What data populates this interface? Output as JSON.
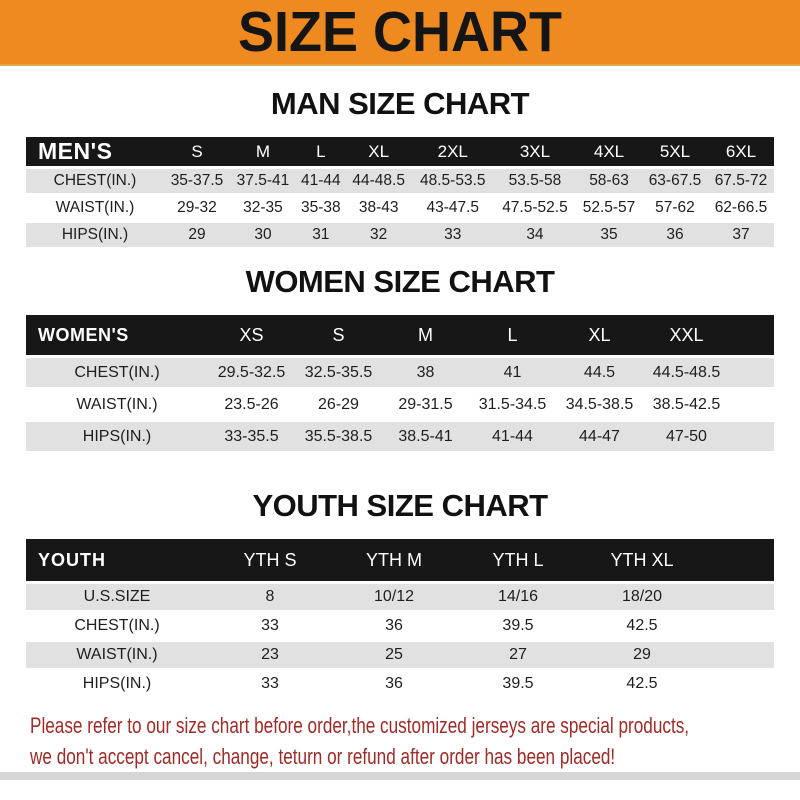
{
  "banner": {
    "title": "SIZE CHART"
  },
  "colors": {
    "orange": "#ee8a20",
    "orange-edge": "#d9a850",
    "bar": "#171717",
    "shade": "#e1e1e1",
    "red": "#9d2b27"
  },
  "sections": [
    {
      "heading": "MAN SIZE CHART",
      "corner_label": "MEN'S",
      "columns": [
        "S",
        "M",
        "L",
        "XL",
        "2XL",
        "3XL",
        "4XL",
        "5XL",
        "6XL"
      ],
      "rows": [
        {
          "label": "CHEST(IN.)",
          "values": [
            "35-37.5",
            "37.5-41",
            "41-44",
            "44-48.5",
            "48.5-53.5",
            "53.5-58",
            "58-63",
            "63-67.5",
            "67.5-72"
          ]
        },
        {
          "label": "WAIST(IN.)",
          "values": [
            "29-32",
            "32-35",
            "35-38",
            "38-43",
            "43-47.5",
            "47.5-52.5",
            "52.5-57",
            "57-62",
            "62-66.5"
          ]
        },
        {
          "label": "HIPS(IN.)",
          "values": [
            "29",
            "30",
            "31",
            "32",
            "33",
            "34",
            "35",
            "36",
            "37"
          ]
        }
      ]
    },
    {
      "heading": "WOMEN SIZE CHART",
      "corner_label": "WOMEN'S",
      "columns": [
        "XS",
        "S",
        "M",
        "L",
        "XL",
        "XXL"
      ],
      "rows": [
        {
          "label": "CHEST(IN.)",
          "values": [
            "29.5-32.5",
            "32.5-35.5",
            "38",
            "41",
            "44.5",
            "44.5-48.5"
          ]
        },
        {
          "label": "WAIST(IN.)",
          "values": [
            "23.5-26",
            "26-29",
            "29-31.5",
            "31.5-34.5",
            "34.5-38.5",
            "38.5-42.5"
          ]
        },
        {
          "label": "HIPS(IN.)",
          "values": [
            "33-35.5",
            "35.5-38.5",
            "38.5-41",
            "41-44",
            "44-47",
            "47-50"
          ]
        }
      ]
    },
    {
      "heading": "YOUTH SIZE CHART",
      "corner_label": "YOUTH",
      "columns": [
        "YTH S",
        "YTH M",
        "YTH L",
        "YTH XL"
      ],
      "rows": [
        {
          "label": "U.S.SIZE",
          "values": [
            "8",
            "10/12",
            "14/16",
            "18/20"
          ]
        },
        {
          "label": "CHEST(IN.)",
          "values": [
            "33",
            "36",
            "39.5",
            "42.5"
          ]
        },
        {
          "label": "WAIST(IN.)",
          "values": [
            "23",
            "25",
            "27",
            "29"
          ]
        },
        {
          "label": "HIPS(IN.)",
          "values": [
            "33",
            "36",
            "39.5",
            "42.5"
          ]
        }
      ]
    }
  ],
  "footer": {
    "line1": "Please refer to our size chart before order,the customized jerseys are special products,",
    "line2": "we don't accept cancel, change, teturn or refund after order has been placed!"
  }
}
